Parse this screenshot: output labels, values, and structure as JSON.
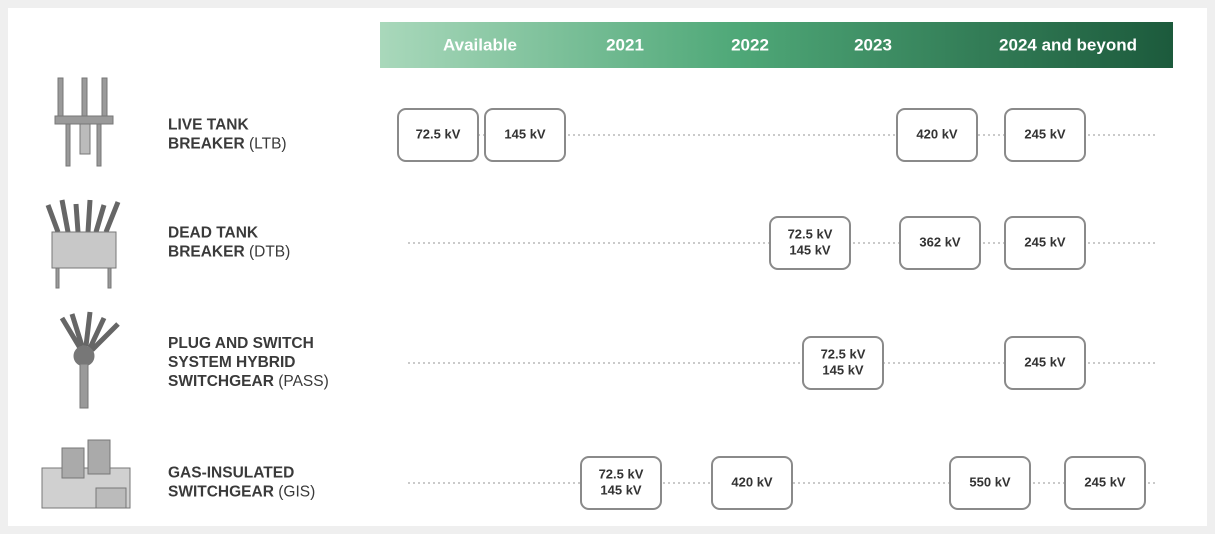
{
  "header": {
    "columns": [
      "Available",
      "2021",
      "2022",
      "2023",
      "2024 and beyond"
    ]
  },
  "rows": [
    {
      "name_lines": [
        "LIVE TANK",
        "BREAKER"
      ],
      "abbr": "(LTB)",
      "boxes": [
        [
          "72.5 kV"
        ],
        [
          "145 kV"
        ],
        [
          "420 kV"
        ],
        [
          "245 kV"
        ]
      ]
    },
    {
      "name_lines": [
        "DEAD TANK",
        "BREAKER"
      ],
      "abbr": "(DTB)",
      "boxes": [
        [
          "72.5 kV",
          "145 kV"
        ],
        [
          "362 kV"
        ],
        [
          "245 kV"
        ]
      ]
    },
    {
      "name_lines": [
        "PLUG AND SWITCH",
        "SYSTEM HYBRID",
        "SWITCHGEAR"
      ],
      "abbr": "(PASS)",
      "boxes": [
        [
          "72.5 kV",
          "145 kV"
        ],
        [
          "245 kV"
        ]
      ]
    },
    {
      "name_lines": [
        "GAS-INSULATED",
        "SWITCHGEAR"
      ],
      "abbr": "(GIS)",
      "boxes": [
        [
          "72.5 kV",
          "145 kV"
        ],
        [
          "420 kV"
        ],
        [
          "550 kV"
        ],
        [
          "245 kV"
        ]
      ]
    }
  ]
}
